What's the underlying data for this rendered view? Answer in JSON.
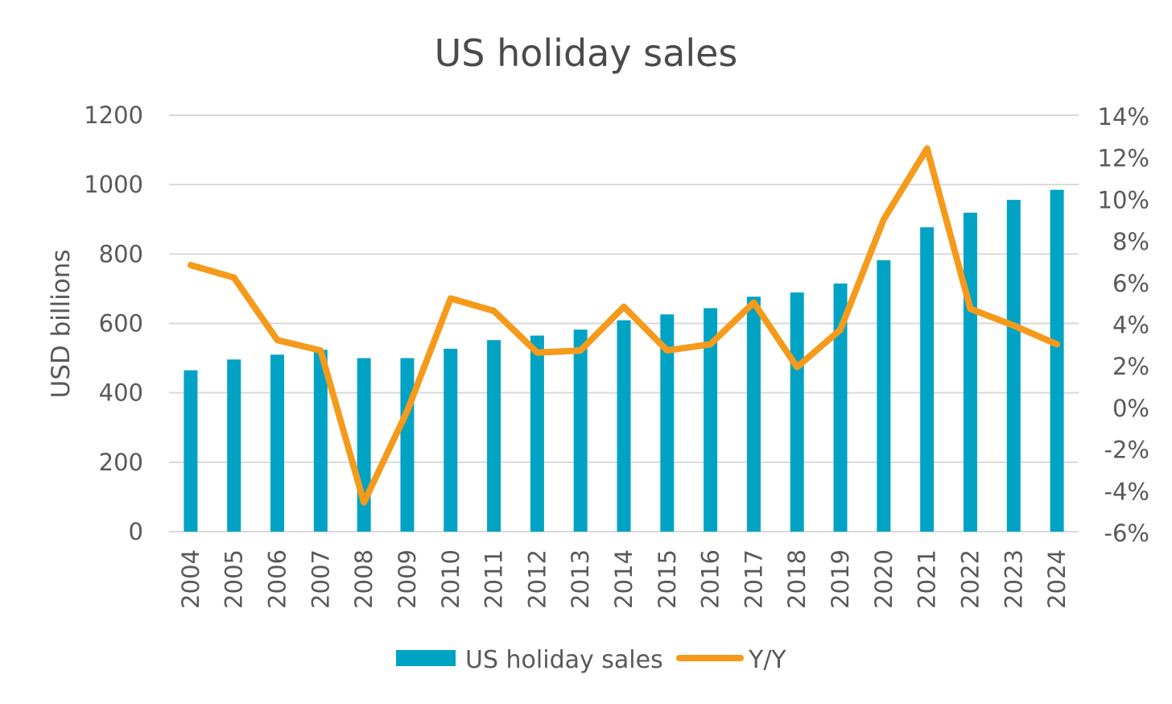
{
  "chart_data": {
    "type": "bar",
    "title": "US holiday sales",
    "ylabel": "USD billions",
    "xlabel": "",
    "categories": [
      "2004",
      "2005",
      "2006",
      "2007",
      "2008",
      "2009",
      "2010",
      "2011",
      "2012",
      "2013",
      "2014",
      "2015",
      "2016",
      "2017",
      "2018",
      "2019",
      "2020",
      "2021",
      "2022",
      "2023",
      "2024"
    ],
    "ylim": [
      0,
      1200
    ],
    "yticks": [
      "0",
      "200",
      "400",
      "600",
      "800",
      "1000",
      "1200"
    ],
    "y2lim": [
      -6,
      14
    ],
    "y2ticks": [
      "-6%",
      "-4%",
      "-2%",
      "0%",
      "2%",
      "4%",
      "6%",
      "8%",
      "10%",
      "12%",
      "14%"
    ],
    "grid": true,
    "legend_position": "bottom",
    "series": [
      {
        "name": "US holiday sales",
        "type": "bar",
        "axis": "left",
        "color": "#00a3c4",
        "values": [
          465,
          496,
          510,
          524,
          500,
          500,
          527,
          552,
          565,
          582,
          609,
          626,
          644,
          677,
          689,
          715,
          782,
          877,
          919,
          956,
          985
        ]
      },
      {
        "name": "Y/Y",
        "type": "line",
        "axis": "right",
        "color": "#f59a1b",
        "values": [
          6.8,
          6.2,
          3.2,
          2.7,
          -4.6,
          -0.2,
          5.2,
          4.6,
          2.6,
          2.7,
          4.8,
          2.7,
          3.0,
          5.0,
          1.9,
          3.7,
          9.0,
          12.4,
          4.7,
          3.9,
          3.0
        ]
      }
    ]
  }
}
